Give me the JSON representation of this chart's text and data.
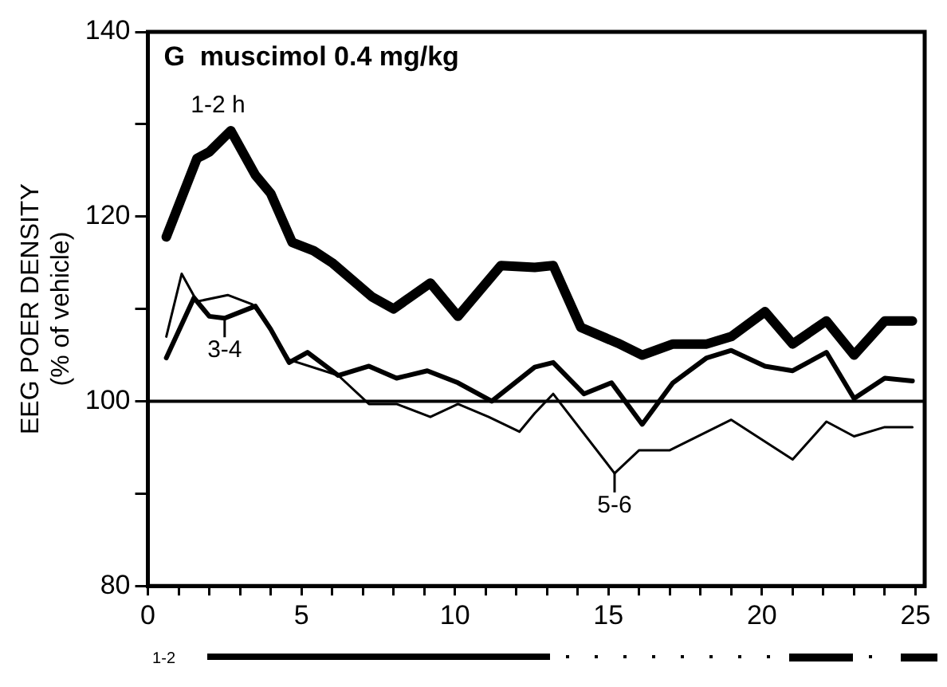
{
  "chart_data": {
    "type": "line",
    "title": "G  muscimol 0.4 mg/kg",
    "ylabel": "EEG POER DENSITY\n(% of vehicle)",
    "xlim": [
      0,
      25.3
    ],
    "xticks": [
      0,
      {
        "value": 1,
        "label": null
      },
      {
        "value": 2,
        "label": null
      },
      {
        "value": 3,
        "label": null
      },
      {
        "value": 4,
        "label": null
      },
      5,
      {
        "value": 6,
        "label": null
      },
      {
        "value": 7,
        "label": null
      },
      {
        "value": 8,
        "label": null
      },
      {
        "value": 9,
        "label": null
      },
      10,
      {
        "value": 11,
        "label": null
      },
      {
        "value": 12,
        "label": null
      },
      {
        "value": 13,
        "label": null
      },
      {
        "value": 14,
        "label": null
      },
      15,
      {
        "value": 16,
        "label": null
      },
      {
        "value": 17,
        "label": null
      },
      {
        "value": 18,
        "label": null
      },
      {
        "value": 19,
        "label": null
      },
      20,
      {
        "value": 21,
        "label": null
      },
      {
        "value": 22,
        "label": null
      },
      {
        "value": 23,
        "label": null
      },
      {
        "value": 24,
        "label": null
      },
      25
    ],
    "ylim": [
      80,
      140
    ],
    "yticks": [
      80,
      {
        "value": 90,
        "label": null
      },
      100,
      {
        "value": 110,
        "label": null
      },
      120,
      {
        "value": 130,
        "label": null
      },
      140
    ],
    "legend": false,
    "marker": "none",
    "grid": false,
    "series": [
      {
        "color": "#000000",
        "x": [
          0.6,
          1.6,
          2.0,
          2.7,
          3.5,
          4.0,
          4.7,
          5.4,
          6.0,
          7.3,
          8.0,
          9.2,
          10.1,
          11.5,
          12.6,
          13.2,
          14.1,
          15.3,
          16.1,
          17.1,
          18.2,
          19.0,
          20.1,
          21.0,
          22.1,
          23.0,
          24.0,
          24.9
        ],
        "values": [
          117.8,
          126.3,
          127,
          129.3,
          124.5,
          122.5,
          117.2,
          116.3,
          115,
          111.3,
          110,
          112.8,
          109.2,
          114.7,
          114.5,
          114.7,
          108,
          106.3,
          105,
          106.2,
          106.2,
          107,
          109.7,
          106.2,
          108.7,
          105,
          108.7,
          108.7
        ]
      },
      {
        "color": "#000000",
        "x": [
          0.6,
          1.5,
          2.0,
          2.5,
          3.5,
          4.0,
          4.6,
          5.2,
          6.2,
          7.2,
          8.1,
          9.1,
          10.1,
          11.2,
          12.6,
          13.2,
          14.2,
          15.1,
          16.1,
          17.1,
          18.2,
          19.0,
          20.1,
          21.0,
          22.1,
          23.0,
          24.0,
          24.9
        ],
        "values": [
          104.7,
          111.2,
          109.2,
          109,
          110.3,
          107.8,
          104.2,
          105.3,
          102.8,
          103.8,
          102.5,
          103.3,
          102,
          100,
          103.7,
          104.2,
          100.8,
          102,
          97.5,
          102,
          104.7,
          105.5,
          103.8,
          103.3,
          105.3,
          100.3,
          102.5,
          102.2
        ]
      },
      {
        "color": "#000000",
        "x": [
          0.6,
          1.1,
          1.6,
          2.6,
          3.4,
          4.0,
          4.6,
          6.2,
          7.2,
          8.1,
          9.2,
          10.1,
          11.1,
          12.1,
          12.6,
          13.2,
          15.2,
          16.0,
          17.0,
          19.0,
          21.0,
          22.1,
          23.0,
          24.0,
          24.9
        ],
        "values": [
          107,
          113.8,
          110.8,
          111.5,
          110.5,
          107.8,
          104.5,
          102.8,
          99.7,
          99.7,
          98.3,
          99.7,
          98.3,
          96.7,
          98.7,
          100.8,
          92.2,
          94.7,
          94.7,
          98,
          93.7,
          97.8,
          96.2,
          97.2,
          97.2
        ]
      }
    ],
    "ref_lines": [
      {
        "axis": "y",
        "value": 100,
        "color": "#000000"
      }
    ],
    "annotations": [
      {
        "text": "1-2 h",
        "x": 2.7,
        "y": 129.3
      },
      {
        "text": "3-4",
        "x": 2.5,
        "y": 109
      },
      {
        "text": "5-6",
        "x": 15.2,
        "y": 92.2
      },
      "1-2"
    ]
  }
}
